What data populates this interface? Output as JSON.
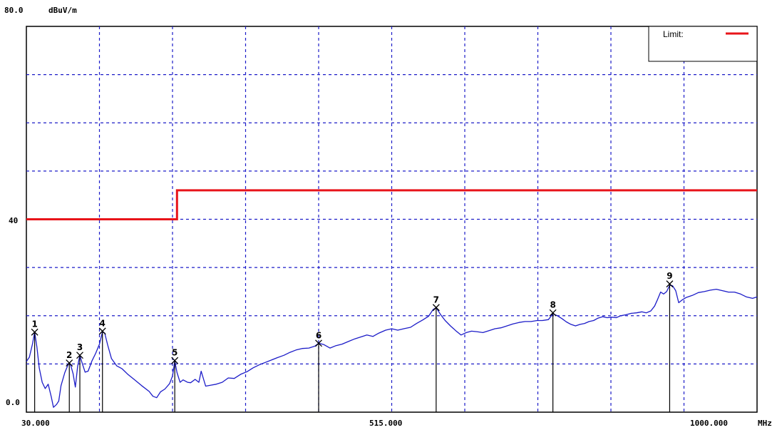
{
  "chart_data": {
    "type": "line",
    "x_unit": "MHz",
    "y_unit": "dBuV/m",
    "xlim": [
      30.0,
      1000.0
    ],
    "ylim": [
      0.0,
      80.0
    ],
    "x_tick_labels": [
      "30.000",
      "515.000",
      "1000.000"
    ],
    "y_tick_labels": [
      "80.0",
      "40",
      "0.0"
    ],
    "grid": true,
    "legend": {
      "position": "top-right",
      "entries": [
        {
          "label": "Limit:",
          "color": "#e8141a"
        }
      ]
    },
    "limit_line": {
      "name": "Limit:",
      "color": "#e8141a",
      "points": [
        [
          30,
          40.0
        ],
        [
          230,
          40.0
        ],
        [
          230,
          46.0
        ],
        [
          1000,
          46.0
        ]
      ]
    },
    "trace": {
      "color": "#1c1cc8",
      "points": [
        [
          30,
          10.5
        ],
        [
          34,
          11.4
        ],
        [
          38,
          14.1
        ],
        [
          41,
          16.6
        ],
        [
          44,
          13.5
        ],
        [
          47,
          9.2
        ],
        [
          51,
          6.2
        ],
        [
          55,
          4.9
        ],
        [
          59,
          5.8
        ],
        [
          63,
          3.2
        ],
        [
          66,
          1.0
        ],
        [
          70,
          1.6
        ],
        [
          73,
          2.3
        ],
        [
          76,
          5.5
        ],
        [
          81,
          8.2
        ],
        [
          86,
          10.1
        ],
        [
          89,
          9.7
        ],
        [
          92,
          8.0
        ],
        [
          95,
          5.2
        ],
        [
          98,
          9.5
        ],
        [
          101,
          11.8
        ],
        [
          104,
          10.2
        ],
        [
          108,
          8.3
        ],
        [
          112,
          8.5
        ],
        [
          117,
          10.6
        ],
        [
          122,
          12.2
        ],
        [
          127,
          14.1
        ],
        [
          131,
          16.6
        ],
        [
          134,
          16.4
        ],
        [
          138,
          13.9
        ],
        [
          143,
          11.1
        ],
        [
          150,
          9.6
        ],
        [
          157,
          9.0
        ],
        [
          165,
          7.8
        ],
        [
          173,
          6.8
        ],
        [
          183,
          5.5
        ],
        [
          193,
          4.3
        ],
        [
          198,
          3.3
        ],
        [
          203,
          3.0
        ],
        [
          208,
          4.2
        ],
        [
          214,
          4.8
        ],
        [
          220,
          5.9
        ],
        [
          224,
          7.5
        ],
        [
          227,
          10.6
        ],
        [
          230,
          8.2
        ],
        [
          234,
          6.2
        ],
        [
          238,
          6.7
        ],
        [
          244,
          6.2
        ],
        [
          248,
          6.1
        ],
        [
          254,
          6.8
        ],
        [
          259,
          6.2
        ],
        [
          262,
          8.5
        ],
        [
          268,
          5.4
        ],
        [
          275,
          5.6
        ],
        [
          282,
          5.8
        ],
        [
          290,
          6.2
        ],
        [
          298,
          7.1
        ],
        [
          306,
          7.0
        ],
        [
          315,
          7.9
        ],
        [
          323,
          8.4
        ],
        [
          331,
          9.2
        ],
        [
          339,
          9.8
        ],
        [
          347,
          10.3
        ],
        [
          355,
          10.8
        ],
        [
          363,
          11.3
        ],
        [
          372,
          11.8
        ],
        [
          380,
          12.4
        ],
        [
          388,
          12.9
        ],
        [
          396,
          13.2
        ],
        [
          405,
          13.3
        ],
        [
          413,
          13.7
        ],
        [
          418,
          14.3
        ],
        [
          425,
          14.0
        ],
        [
          433,
          13.3
        ],
        [
          441,
          13.8
        ],
        [
          449,
          14.1
        ],
        [
          458,
          14.7
        ],
        [
          466,
          15.2
        ],
        [
          474,
          15.6
        ],
        [
          482,
          16.0
        ],
        [
          490,
          15.7
        ],
        [
          498,
          16.4
        ],
        [
          507,
          17.0
        ],
        [
          515,
          17.3
        ],
        [
          523,
          17.0
        ],
        [
          531,
          17.3
        ],
        [
          540,
          17.6
        ],
        [
          548,
          18.4
        ],
        [
          556,
          19.1
        ],
        [
          564,
          19.9
        ],
        [
          570,
          21.3
        ],
        [
          574,
          21.7
        ],
        [
          580,
          20.2
        ],
        [
          586,
          19.0
        ],
        [
          593,
          17.9
        ],
        [
          600,
          16.9
        ],
        [
          607,
          16.0
        ],
        [
          614,
          16.5
        ],
        [
          621,
          16.8
        ],
        [
          628,
          16.7
        ],
        [
          636,
          16.5
        ],
        [
          644,
          16.9
        ],
        [
          652,
          17.3
        ],
        [
          660,
          17.5
        ],
        [
          668,
          17.9
        ],
        [
          676,
          18.3
        ],
        [
          684,
          18.6
        ],
        [
          692,
          18.8
        ],
        [
          700,
          18.8
        ],
        [
          708,
          19.0
        ],
        [
          715,
          19.0
        ],
        [
          723,
          19.2
        ],
        [
          729,
          20.4
        ],
        [
          735,
          20.0
        ],
        [
          741,
          19.4
        ],
        [
          747,
          18.7
        ],
        [
          753,
          18.2
        ],
        [
          759,
          17.9
        ],
        [
          765,
          18.2
        ],
        [
          771,
          18.4
        ],
        [
          777,
          18.8
        ],
        [
          783,
          19.0
        ],
        [
          789,
          19.5
        ],
        [
          795,
          19.8
        ],
        [
          801,
          19.6
        ],
        [
          807,
          19.7
        ],
        [
          813,
          19.6
        ],
        [
          819,
          20.0
        ],
        [
          826,
          20.2
        ],
        [
          833,
          20.5
        ],
        [
          840,
          20.6
        ],
        [
          847,
          20.8
        ],
        [
          853,
          20.6
        ],
        [
          859,
          21.0
        ],
        [
          864,
          22.0
        ],
        [
          868,
          23.4
        ],
        [
          872,
          24.9
        ],
        [
          876,
          24.5
        ],
        [
          880,
          25.0
        ],
        [
          884,
          26.3
        ],
        [
          888,
          26.2
        ],
        [
          892,
          25.2
        ],
        [
          896,
          22.7
        ],
        [
          900,
          23.2
        ],
        [
          906,
          23.8
        ],
        [
          914,
          24.2
        ],
        [
          922,
          24.8
        ],
        [
          930,
          25.0
        ],
        [
          938,
          25.3
        ],
        [
          946,
          25.5
        ],
        [
          954,
          25.2
        ],
        [
          962,
          24.9
        ],
        [
          970,
          24.9
        ],
        [
          978,
          24.5
        ],
        [
          986,
          23.9
        ],
        [
          994,
          23.6
        ],
        [
          1000,
          23.9
        ]
      ]
    },
    "markers": [
      {
        "label": "1",
        "x": 41,
        "y": 16.6
      },
      {
        "label": "2",
        "x": 87,
        "y": 10.2
      },
      {
        "label": "3",
        "x": 101,
        "y": 11.8
      },
      {
        "label": "4",
        "x": 131,
        "y": 16.8
      },
      {
        "label": "5",
        "x": 227,
        "y": 10.7
      },
      {
        "label": "6",
        "x": 418,
        "y": 14.3
      },
      {
        "label": "7",
        "x": 574,
        "y": 21.7
      },
      {
        "label": "8",
        "x": 729,
        "y": 20.6
      },
      {
        "label": "9",
        "x": 884,
        "y": 26.6
      }
    ]
  }
}
